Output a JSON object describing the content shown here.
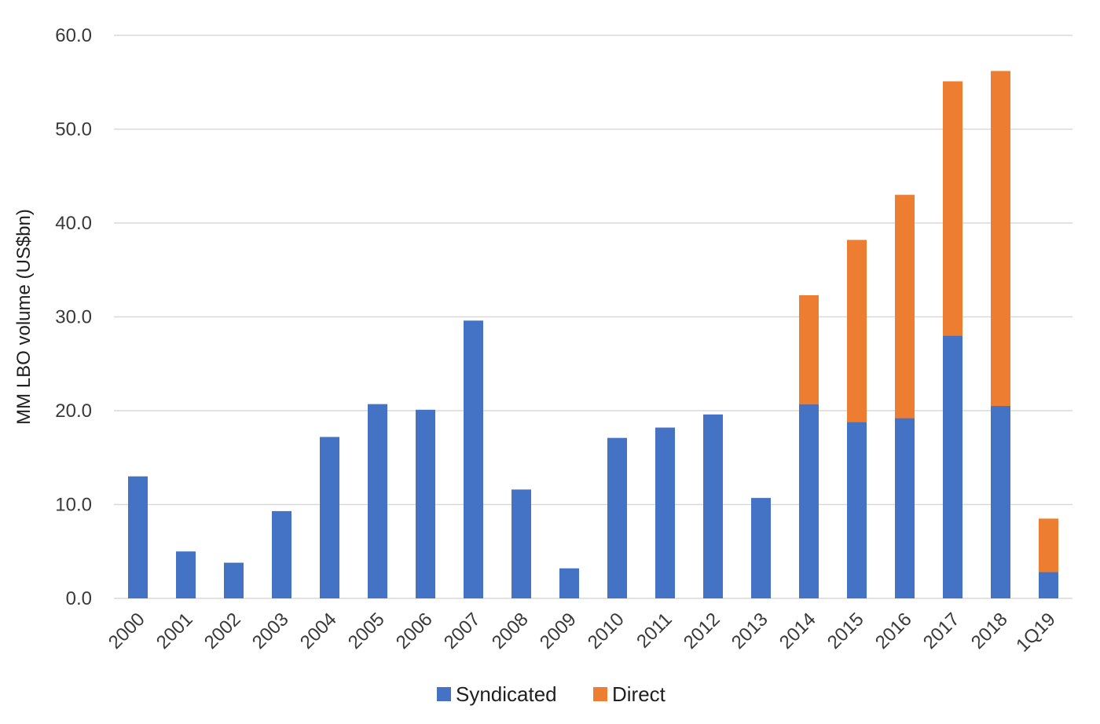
{
  "chart_data": {
    "type": "bar",
    "stacked": true,
    "title": "",
    "xlabel": "",
    "ylabel": "MM LBO volume (US$bn)",
    "ylim": [
      0,
      60
    ],
    "yticks": [
      "0.0",
      "10.0",
      "20.0",
      "30.0",
      "40.0",
      "50.0",
      "60.0"
    ],
    "ytick_values": [
      0,
      10,
      20,
      30,
      40,
      50,
      60
    ],
    "grid": true,
    "legend_position": "bottom",
    "categories": [
      "2000",
      "2001",
      "2002",
      "2003",
      "2004",
      "2005",
      "2006",
      "2007",
      "2008",
      "2009",
      "2010",
      "2011",
      "2012",
      "2013",
      "2014",
      "2015",
      "2016",
      "2017",
      "2018",
      "1Q19"
    ],
    "series": [
      {
        "name": "Syndicated",
        "color": "#4472c4",
        "values": [
          13.0,
          5.0,
          3.8,
          9.3,
          17.2,
          20.7,
          20.1,
          29.6,
          11.6,
          3.2,
          17.1,
          18.2,
          19.6,
          10.7,
          20.7,
          18.8,
          19.2,
          28.0,
          20.5,
          2.8
        ]
      },
      {
        "name": "Direct",
        "color": "#ed7d31",
        "values": [
          0,
          0,
          0,
          0,
          0,
          0,
          0,
          0,
          0,
          0,
          0,
          0,
          0,
          0,
          11.6,
          19.4,
          23.8,
          27.1,
          35.7,
          5.7
        ]
      }
    ]
  }
}
